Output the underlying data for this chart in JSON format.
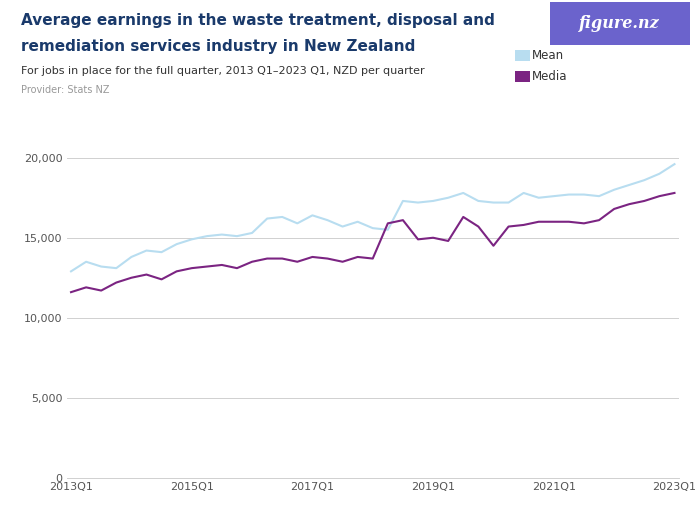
{
  "title_line1": "Average earnings in the waste treatment, disposal and",
  "title_line2": "remediation services industry in New Zealand",
  "subtitle": "For jobs in place for the full quarter, 2013 Q1–2023 Q1, NZD per quarter",
  "provider": "Provider: Stats NZ",
  "legend_mean": "Mean",
  "legend_median": "Media",
  "mean_color": "#b8ddf0",
  "median_color": "#7b2482",
  "background_color": "#ffffff",
  "title_color": "#1a3a6b",
  "subtitle_color": "#333333",
  "provider_color": "#999999",
  "ylim": [
    0,
    21000
  ],
  "yticks": [
    0,
    5000,
    10000,
    15000,
    20000
  ],
  "ytick_labels": [
    "0",
    "5,000",
    "10,000",
    "15,000",
    "20,000"
  ],
  "xtick_labels": [
    "2013 Q1",
    "2015 Q1",
    "2017 Q1",
    "2019 Q1",
    "2021 Q1",
    "2023 Q1"
  ],
  "xtick_positions": [
    0,
    8,
    16,
    24,
    32,
    40
  ],
  "mean_values": [
    12900,
    13500,
    13200,
    13100,
    13800,
    14200,
    14100,
    14600,
    14900,
    15100,
    15200,
    15100,
    15300,
    16200,
    16300,
    15900,
    16400,
    16100,
    15700,
    16000,
    15600,
    15500,
    17300,
    17200,
    17300,
    17500,
    17800,
    17300,
    17200,
    17200,
    17800,
    17500,
    17600,
    17700,
    17700,
    17600,
    18000,
    18300,
    18600,
    19000,
    19600
  ],
  "median_values": [
    11600,
    11900,
    11700,
    12200,
    12500,
    12700,
    12400,
    12900,
    13100,
    13200,
    13300,
    13100,
    13500,
    13700,
    13700,
    13500,
    13800,
    13700,
    13500,
    13800,
    13700,
    15900,
    16100,
    14900,
    15000,
    14800,
    16300,
    15700,
    14500,
    15700,
    15800,
    16000,
    16000,
    16000,
    15900,
    16100,
    16800,
    17100,
    17300,
    17600,
    17800
  ],
  "grid_color": "#d0d0d0",
  "logo_bg_color": "#6b63cc",
  "logo_text": "figure.nz"
}
